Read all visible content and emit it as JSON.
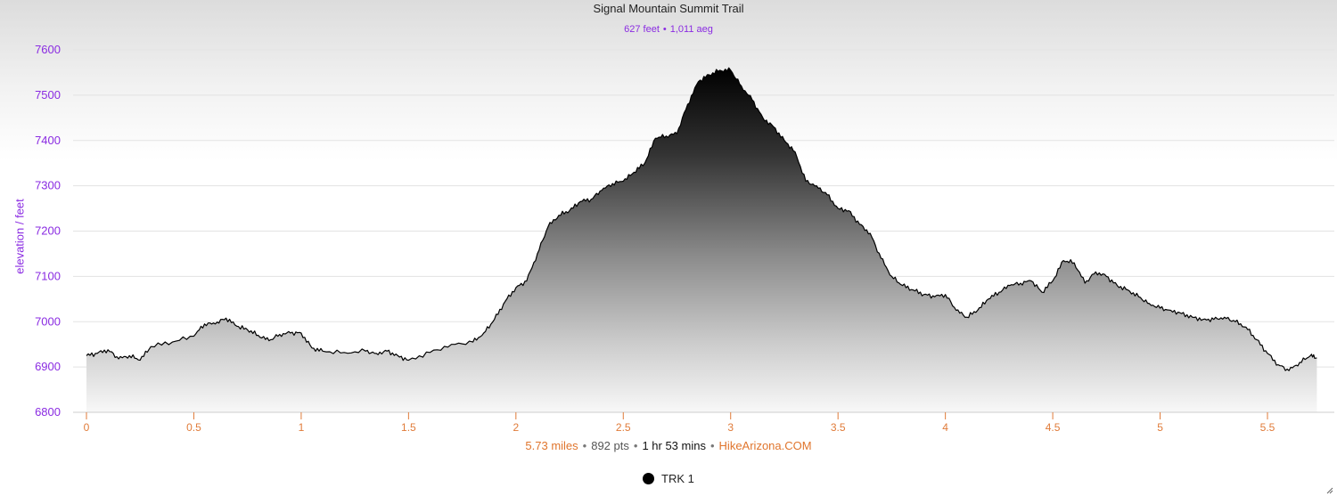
{
  "chart_data": {
    "type": "area",
    "title": "Signal Mountain Summit Trail",
    "subtitle": {
      "gain": "627 feet",
      "aeg": "1,011 aeg"
    },
    "ylabel": "elevation / feet",
    "xlabel": "",
    "xlim": [
      0,
      5.73
    ],
    "ylim": [
      6800,
      7600
    ],
    "x_ticks": [
      "0",
      "0.5",
      "1",
      "1.5",
      "2",
      "2.5",
      "3",
      "3.5",
      "4",
      "4.5",
      "5",
      "5.5"
    ],
    "y_ticks": [
      "6800",
      "6900",
      "7000",
      "7100",
      "7200",
      "7300",
      "7400",
      "7500",
      "7600"
    ],
    "grid": true,
    "series": [
      {
        "name": "TRK 1",
        "x": [
          0,
          0.05,
          0.1,
          0.15,
          0.2,
          0.25,
          0.3,
          0.4,
          0.5,
          0.55,
          0.6,
          0.65,
          0.7,
          0.75,
          0.8,
          0.85,
          0.9,
          0.95,
          1.0,
          1.05,
          1.1,
          1.2,
          1.3,
          1.35,
          1.4,
          1.45,
          1.5,
          1.6,
          1.7,
          1.8,
          1.85,
          1.9,
          1.95,
          2.0,
          2.05,
          2.1,
          2.15,
          2.2,
          2.25,
          2.3,
          2.35,
          2.4,
          2.45,
          2.5,
          2.55,
          2.6,
          2.65,
          2.7,
          2.75,
          2.8,
          2.85,
          2.9,
          2.95,
          3.0,
          3.05,
          3.1,
          3.15,
          3.2,
          3.25,
          3.3,
          3.35,
          3.4,
          3.45,
          3.5,
          3.55,
          3.6,
          3.65,
          3.7,
          3.75,
          3.8,
          3.85,
          3.9,
          3.95,
          4.0,
          4.05,
          4.1,
          4.15,
          4.2,
          4.25,
          4.3,
          4.35,
          4.4,
          4.45,
          4.5,
          4.55,
          4.6,
          4.65,
          4.7,
          4.75,
          4.8,
          4.85,
          4.9,
          4.95,
          5.0,
          5.05,
          5.1,
          5.15,
          5.2,
          5.25,
          5.3,
          5.35,
          5.4,
          5.45,
          5.5,
          5.55,
          5.6,
          5.65,
          5.7,
          5.73
        ],
        "values": [
          6925,
          6930,
          6938,
          6918,
          6925,
          6915,
          6945,
          6955,
          6968,
          6995,
          6995,
          7008,
          6990,
          6982,
          6970,
          6958,
          6972,
          6975,
          6975,
          6942,
          6935,
          6932,
          6935,
          6930,
          6935,
          6925,
          6915,
          6932,
          6950,
          6955,
          6975,
          7005,
          7045,
          7075,
          7090,
          7150,
          7210,
          7235,
          7245,
          7265,
          7270,
          7290,
          7305,
          7310,
          7330,
          7350,
          7405,
          7410,
          7415,
          7480,
          7530,
          7545,
          7555,
          7555,
          7520,
          7490,
          7450,
          7430,
          7400,
          7375,
          7310,
          7300,
          7280,
          7250,
          7245,
          7215,
          7195,
          7140,
          7100,
          7080,
          7070,
          7060,
          7055,
          7060,
          7025,
          7010,
          7025,
          7050,
          7065,
          7080,
          7085,
          7090,
          7065,
          7090,
          7135,
          7130,
          7085,
          7110,
          7100,
          7080,
          7070,
          7055,
          7040,
          7030,
          7025,
          7018,
          7010,
          7005,
          7005,
          7010,
          7000,
          6988,
          6960,
          6930,
          6905,
          6892,
          6910,
          6925,
          6920
        ]
      }
    ],
    "footer": {
      "distance": "5.73 miles",
      "points": "892 pts",
      "duration": "1 hr 53 mins",
      "source": "HikeArizona.COM"
    },
    "legend_position": "bottom-center",
    "colors": {
      "line": "#000000",
      "fill_top": "#000000",
      "fill_bottom": "#ffffff",
      "axis_text_y": "#8a2be2",
      "axis_text_x": "#e07b39",
      "footer_accent": "#e0752d"
    }
  }
}
